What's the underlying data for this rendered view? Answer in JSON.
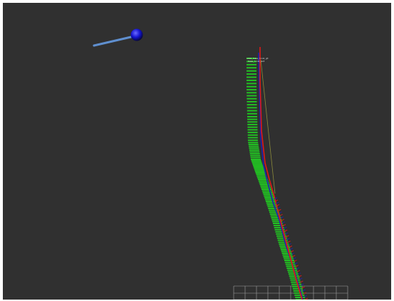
{
  "app": {
    "view": "3d-viewport"
  },
  "scene": {
    "background": "#303030",
    "grid_color": "#a0a0a0",
    "marker": {
      "sphere_color": "#1010d8",
      "arrow_color": "#5f8fcf"
    },
    "path": {
      "pose_arrow_color": "#22c022",
      "pose_count": 115,
      "planned_path_color": "#e01818",
      "reference_path_color": "#2020b0",
      "guide_line_color": "#8a8a3a"
    },
    "labels": [
      {
        "text": "odom_base_link_gt"
      },
      {
        "text": "base_link_est"
      }
    ]
  }
}
